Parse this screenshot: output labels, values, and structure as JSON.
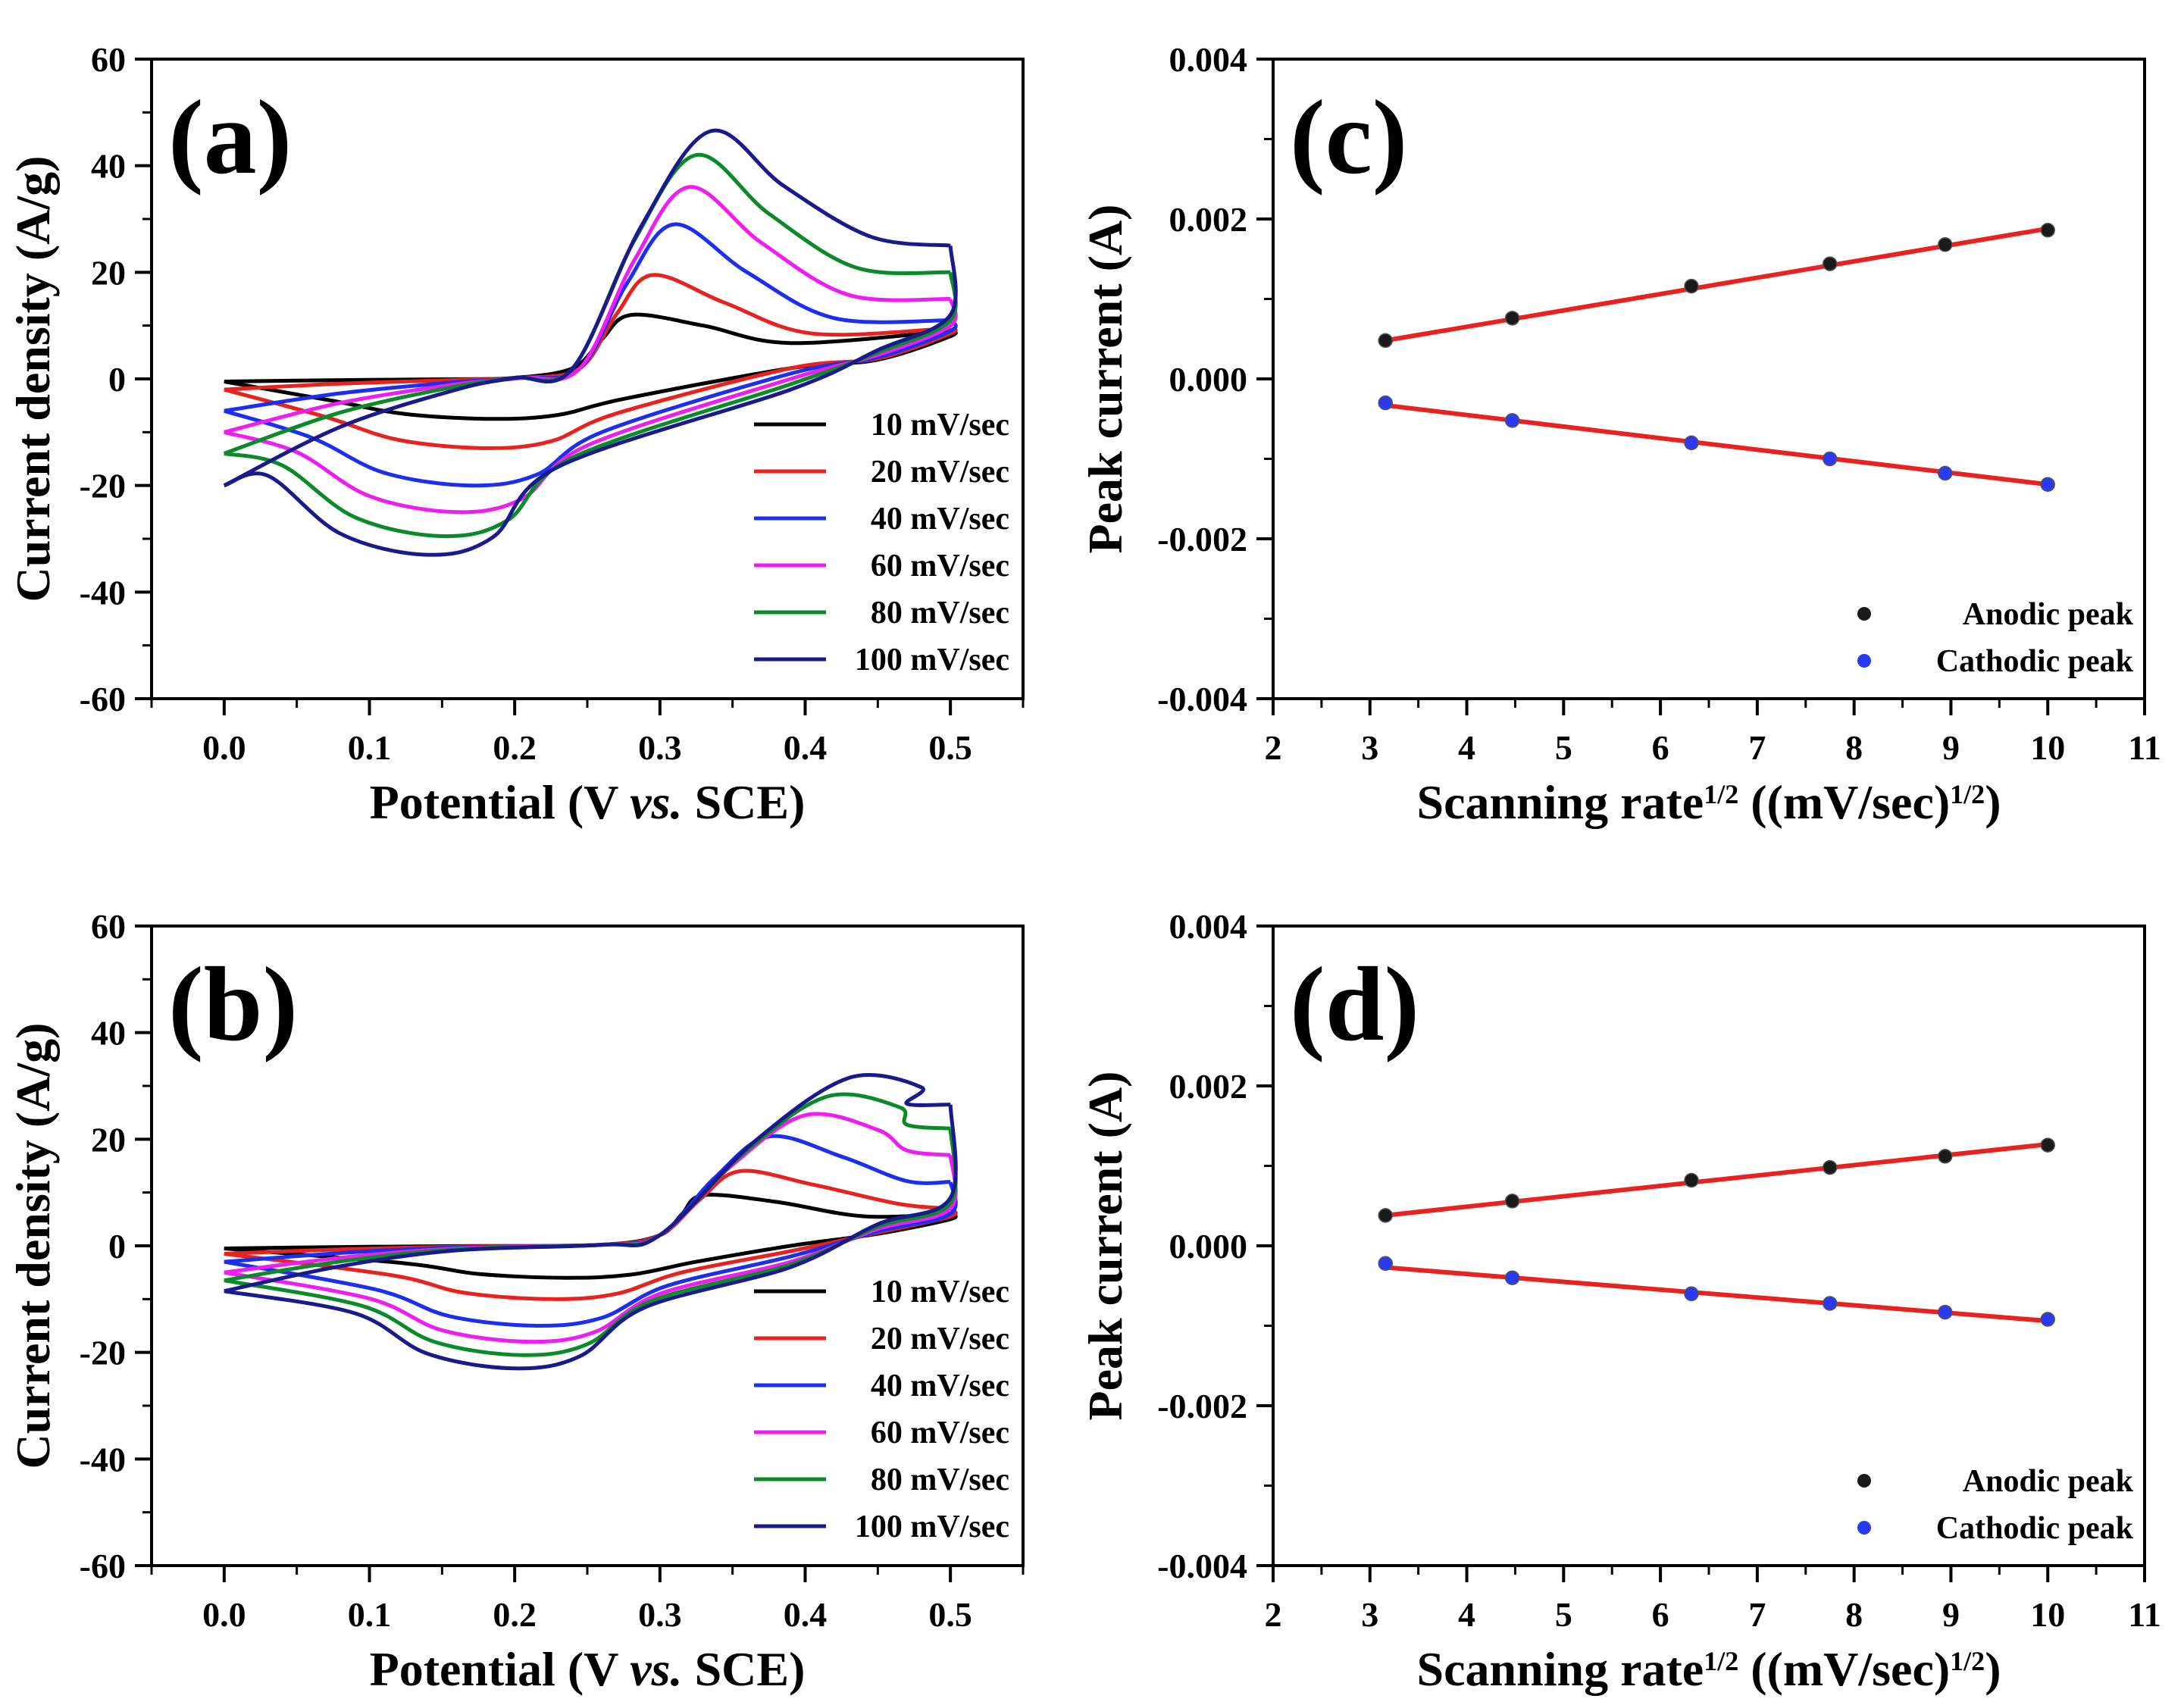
{
  "chart_data": [
    {
      "id": "a",
      "type": "line",
      "panel_label": "(a)",
      "xlabel_pre": "Potential (V ",
      "xlabel_ital": "vs.",
      "xlabel_post": " SCE)",
      "ylabel": "Current density (A/g)",
      "xlim": [
        -0.05,
        0.55
      ],
      "ylim": [
        -60,
        60
      ],
      "xticks": [
        0.0,
        0.1,
        0.2,
        0.3,
        0.4,
        0.5
      ],
      "xtick_labels": [
        "0.0",
        "0.1",
        "0.2",
        "0.3",
        "0.4",
        "0.5"
      ],
      "yticks": [
        -60,
        -40,
        -20,
        0,
        20,
        40,
        60
      ],
      "ytick_labels": [
        "-60",
        "-40",
        "-20",
        "0",
        "20",
        "40",
        "60"
      ],
      "legend_position": "bottom-right",
      "series": [
        {
          "name": "10 mV/sec",
          "color": "#000000",
          "anodic_peak": [
            0.28,
            12
          ],
          "cathodic_peak": [
            0.185,
            -7.5
          ],
          "start_current": -0.5,
          "end_current_high": 9,
          "end_current_low": 8,
          "onset": 0.24,
          "anodic_tail": 6,
          "cathodic_edge": 2
        },
        {
          "name": "20 mV/sec",
          "color": "#e8231f",
          "anodic_peak": [
            0.295,
            19.5
          ],
          "cathodic_peak": [
            0.18,
            -13
          ],
          "start_current": -2,
          "end_current_high": 9.5,
          "end_current_low": 8.5,
          "onset": 0.245,
          "anodic_tail": 7,
          "cathodic_edge": 2
        },
        {
          "name": "40 mV/sec",
          "color": "#1c2ff0",
          "anodic_peak": [
            0.31,
            29
          ],
          "cathodic_peak": [
            0.17,
            -20
          ],
          "start_current": -6,
          "end_current_high": 11,
          "end_current_low": 9,
          "onset": 0.245,
          "anodic_tail": 9,
          "cathodic_edge": 1
        },
        {
          "name": "60 mV/sec",
          "color": "#ef1ef0",
          "anodic_peak": [
            0.32,
            36
          ],
          "cathodic_peak": [
            0.16,
            -25
          ],
          "start_current": -10,
          "end_current_high": 15,
          "end_current_low": 10,
          "onset": 0.245,
          "anodic_tail": 13,
          "cathodic_edge": 0
        },
        {
          "name": "80 mV/sec",
          "color": "#0b8a2a",
          "anodic_peak": [
            0.325,
            42
          ],
          "cathodic_peak": [
            0.15,
            -29.5
          ],
          "start_current": -14,
          "end_current_high": 20,
          "end_current_low": 11,
          "onset": 0.24,
          "anodic_tail": 18,
          "cathodic_edge": -1
        },
        {
          "name": "100 mV/sec",
          "color": "#191a8c",
          "anodic_peak": [
            0.335,
            46.5
          ],
          "cathodic_peak": [
            0.14,
            -33
          ],
          "start_current": -20,
          "end_current_high": 25,
          "end_current_low": 12,
          "onset": 0.24,
          "anodic_tail": 24,
          "cathodic_edge": -2
        }
      ]
    },
    {
      "id": "b",
      "type": "line",
      "panel_label": "(b)",
      "xlabel_pre": "Potential (V ",
      "xlabel_ital": "vs.",
      "xlabel_post": " SCE)",
      "ylabel": "Current density (A/g)",
      "xlim": [
        -0.05,
        0.55
      ],
      "ylim": [
        -60,
        60
      ],
      "xticks": [
        0.0,
        0.1,
        0.2,
        0.3,
        0.4,
        0.5
      ],
      "xtick_labels": [
        "0.0",
        "0.1",
        "0.2",
        "0.3",
        "0.4",
        "0.5"
      ],
      "yticks": [
        -60,
        -40,
        -20,
        0,
        20,
        40,
        60
      ],
      "ytick_labels": [
        "-60",
        "-40",
        "-20",
        "0",
        "20",
        "40",
        "60"
      ],
      "legend_position": "bottom-right",
      "series": [
        {
          "name": "10 mV/sec",
          "color": "#000000",
          "anodic_peak": [
            0.33,
            9.5
          ],
          "cathodic_peak": [
            0.235,
            -6
          ],
          "start_current": -0.5,
          "end_current_high": 6,
          "end_current_low": 5,
          "onset": 0.3,
          "anodic_tail": 5,
          "cathodic_edge": 0
        },
        {
          "name": "20 mV/sec",
          "color": "#e8231f",
          "anodic_peak": [
            0.355,
            14
          ],
          "cathodic_peak": [
            0.225,
            -10
          ],
          "start_current": -1.5,
          "end_current_high": 7,
          "end_current_low": 5.5,
          "onset": 0.3,
          "anodic_tail": 7,
          "cathodic_edge": -1
        },
        {
          "name": "40 mV/sec",
          "color": "#1c2ff0",
          "anodic_peak": [
            0.375,
            20.5
          ],
          "cathodic_peak": [
            0.215,
            -15
          ],
          "start_current": -3,
          "end_current_high": 12,
          "end_current_low": 6,
          "onset": 0.3,
          "anodic_tail": 11,
          "cathodic_edge": -2
        },
        {
          "name": "60 mV/sec",
          "color": "#ef1ef0",
          "anodic_peak": [
            0.4,
            24.5
          ],
          "cathodic_peak": [
            0.21,
            -18
          ],
          "start_current": -5,
          "end_current_high": 17,
          "end_current_low": 7,
          "onset": 0.3,
          "anodic_tail": 17,
          "cathodic_edge": -3
        },
        {
          "name": "80 mV/sec",
          "color": "#0b8a2a",
          "anodic_peak": [
            0.415,
            28
          ],
          "cathodic_peak": [
            0.205,
            -20.5
          ],
          "start_current": -6.5,
          "end_current_high": 22,
          "end_current_low": 8,
          "onset": 0.3,
          "anodic_tail": 22,
          "cathodic_edge": -3.5
        },
        {
          "name": "100 mV/sec",
          "color": "#191a8c",
          "anodic_peak": [
            0.43,
            31.5
          ],
          "cathodic_peak": [
            0.2,
            -23
          ],
          "start_current": -8.5,
          "end_current_high": 26.5,
          "end_current_low": 9,
          "onset": 0.3,
          "anodic_tail": 26,
          "cathodic_edge": -4
        }
      ]
    },
    {
      "id": "c",
      "type": "scatter",
      "panel_label": "(c)",
      "xlabel_pre": "Scanning rate",
      "xlabel_sup1": "1/2",
      "xlabel_mid": " ((mV/sec)",
      "xlabel_sup2": "1/2",
      "xlabel_post": ")",
      "ylabel": "Peak current (A)",
      "xlim": [
        2,
        11
      ],
      "ylim": [
        -0.004,
        0.004
      ],
      "xticks": [
        2,
        3,
        4,
        5,
        6,
        7,
        8,
        9,
        10,
        11
      ],
      "xtick_labels": [
        "2",
        "3",
        "4",
        "5",
        "6",
        "7",
        "8",
        "9",
        "10",
        "11"
      ],
      "yticks": [
        -0.004,
        -0.002,
        0,
        0.002,
        0.004
      ],
      "ytick_labels": [
        "-0.004",
        "-0.002",
        "0.000",
        "0.002",
        "0.004"
      ],
      "legend_position": "bottom-right",
      "fit_color": "#e8231f",
      "series": [
        {
          "name": "Anodic peak",
          "color": "#1a1a1a",
          "x": [
            3.16,
            4.47,
            6.32,
            7.75,
            8.94,
            10.0
          ],
          "y": [
            0.00048,
            0.00076,
            0.00116,
            0.00144,
            0.00168,
            0.00186
          ],
          "fit": [
            [
              3.16,
              0.00048
            ],
            [
              10.0,
              0.00188
            ]
          ]
        },
        {
          "name": "Cathodic peak",
          "color": "#2a3af0",
          "x": [
            3.16,
            4.47,
            6.32,
            7.75,
            8.94,
            10.0
          ],
          "y": [
            -0.0003,
            -0.00052,
            -0.0008,
            -0.001,
            -0.00118,
            -0.00132
          ],
          "fit": [
            [
              3.16,
              -0.00033
            ],
            [
              10.0,
              -0.00132
            ]
          ]
        }
      ]
    },
    {
      "id": "d",
      "type": "scatter",
      "panel_label": "(d)",
      "xlabel_pre": "Scanning rate",
      "xlabel_sup1": "1/2",
      "xlabel_mid": " ((mV/sec)",
      "xlabel_sup2": "1/2",
      "xlabel_post": ")",
      "ylabel": "Peak current (A)",
      "xlim": [
        2,
        11
      ],
      "ylim": [
        -0.004,
        0.004
      ],
      "xticks": [
        2,
        3,
        4,
        5,
        6,
        7,
        8,
        9,
        10,
        11
      ],
      "xtick_labels": [
        "2",
        "3",
        "4",
        "5",
        "6",
        "7",
        "8",
        "9",
        "10",
        "11"
      ],
      "yticks": [
        -0.004,
        -0.002,
        0,
        0.002,
        0.004
      ],
      "ytick_labels": [
        "-0.004",
        "-0.002",
        "0.000",
        "0.002",
        "0.004"
      ],
      "legend_position": "bottom-right",
      "fit_color": "#e8231f",
      "series": [
        {
          "name": "Anodic peak",
          "color": "#1a1a1a",
          "x": [
            3.16,
            4.47,
            6.32,
            7.75,
            8.94,
            10.0
          ],
          "y": [
            0.00038,
            0.00056,
            0.00082,
            0.00098,
            0.00112,
            0.00126
          ],
          "fit": [
            [
              3.16,
              0.00038
            ],
            [
              10.0,
              0.00127
            ]
          ]
        },
        {
          "name": "Cathodic peak",
          "color": "#2a3af0",
          "x": [
            3.16,
            4.47,
            6.32,
            7.75,
            8.94,
            10.0
          ],
          "y": [
            -0.00022,
            -0.0004,
            -0.0006,
            -0.00072,
            -0.00083,
            -0.00092
          ],
          "fit": [
            [
              3.16,
              -0.00027
            ],
            [
              10.0,
              -0.00094
            ]
          ]
        }
      ]
    }
  ]
}
